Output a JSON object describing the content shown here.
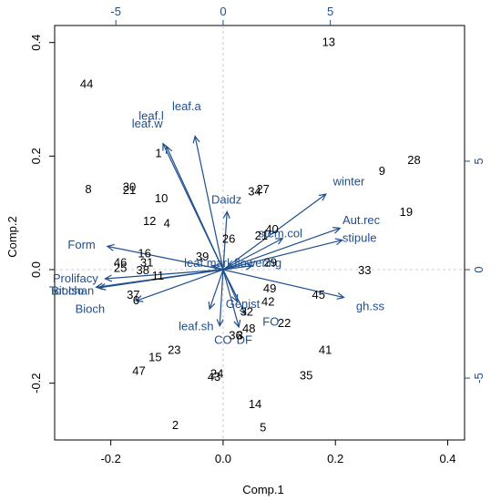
{
  "chart_data": {
    "type": "scatter",
    "subtype": "biplot",
    "xlabel": "Comp.1",
    "ylabel": "Comp.2",
    "xlim": [
      -0.3,
      0.43
    ],
    "ylim": [
      -0.3,
      0.43
    ],
    "xticks": [
      "-0.2",
      "0.0",
      "0.2",
      "0.4"
    ],
    "xtick_values": [
      -0.2,
      0.0,
      0.2,
      0.4
    ],
    "yticks": [
      "-0.2",
      "0.0",
      "0.2",
      "0.4"
    ],
    "ytick_values": [
      -0.2,
      0.0,
      0.2,
      0.4
    ],
    "top_ticks": [
      "-5",
      "0",
      "5"
    ],
    "top_tick_values": [
      -5,
      0,
      5
    ],
    "right_ticks": [
      "-5",
      "0",
      "5"
    ],
    "right_tick_values": [
      -5,
      0,
      5
    ],
    "secondary_scale": 0.0382,
    "colors": {
      "observations": "#000000",
      "variables": "#1f4e8c"
    },
    "observations": [
      {
        "label": "13",
        "x": 0.188,
        "y": 0.402
      },
      {
        "label": "44",
        "x": -0.243,
        "y": 0.328
      },
      {
        "label": "9",
        "x": 0.283,
        "y": 0.175
      },
      {
        "label": "28",
        "x": 0.34,
        "y": 0.194
      },
      {
        "label": "1",
        "x": -0.115,
        "y": 0.206
      },
      {
        "label": "8",
        "x": -0.24,
        "y": 0.143
      },
      {
        "label": "30",
        "x": -0.167,
        "y": 0.147
      },
      {
        "label": "21",
        "x": -0.167,
        "y": 0.141
      },
      {
        "label": "10",
        "x": -0.11,
        "y": 0.127
      },
      {
        "label": "34",
        "x": 0.056,
        "y": 0.139
      },
      {
        "label": "27",
        "x": 0.071,
        "y": 0.143
      },
      {
        "label": "19",
        "x": 0.326,
        "y": 0.103
      },
      {
        "label": "12",
        "x": -0.131,
        "y": 0.087
      },
      {
        "label": "4",
        "x": -0.1,
        "y": 0.083
      },
      {
        "label": "26",
        "x": 0.01,
        "y": 0.055
      },
      {
        "label": "21",
        "x": 0.068,
        "y": 0.061
      },
      {
        "label": "40",
        "x": 0.087,
        "y": 0.072
      },
      {
        "label": "16",
        "x": -0.14,
        "y": 0.03
      },
      {
        "label": "39",
        "x": -0.037,
        "y": 0.024
      },
      {
        "label": "46",
        "x": -0.183,
        "y": 0.014
      },
      {
        "label": "31",
        "x": -0.136,
        "y": 0.014
      },
      {
        "label": "25",
        "x": -0.183,
        "y": 0.004
      },
      {
        "label": "38",
        "x": -0.143,
        "y": 0.0
      },
      {
        "label": "11",
        "x": -0.116,
        "y": -0.01
      },
      {
        "label": "29",
        "x": 0.084,
        "y": 0.014
      },
      {
        "label": "33",
        "x": 0.252,
        "y": 0.0
      },
      {
        "label": "37",
        "x": -0.16,
        "y": -0.043
      },
      {
        "label": "6",
        "x": -0.155,
        "y": -0.053
      },
      {
        "label": "49",
        "x": 0.083,
        "y": -0.032
      },
      {
        "label": "42",
        "x": 0.08,
        "y": -0.055
      },
      {
        "label": "45",
        "x": 0.17,
        "y": -0.043
      },
      {
        "label": "32",
        "x": 0.042,
        "y": -0.073
      },
      {
        "label": "22",
        "x": 0.109,
        "y": -0.093
      },
      {
        "label": "48",
        "x": 0.046,
        "y": -0.103
      },
      {
        "label": "3",
        "x": 0.03,
        "y": -0.115
      },
      {
        "label": "36",
        "x": 0.022,
        "y": -0.115
      },
      {
        "label": "41",
        "x": 0.182,
        "y": -0.14
      },
      {
        "label": "23",
        "x": -0.087,
        "y": -0.14
      },
      {
        "label": "15",
        "x": -0.121,
        "y": -0.153
      },
      {
        "label": "47",
        "x": -0.15,
        "y": -0.177
      },
      {
        "label": "24",
        "x": -0.011,
        "y": -0.182
      },
      {
        "label": "43",
        "x": -0.016,
        "y": -0.188
      },
      {
        "label": "35",
        "x": 0.148,
        "y": -0.185
      },
      {
        "label": "14",
        "x": 0.057,
        "y": -0.236
      },
      {
        "label": "2",
        "x": -0.085,
        "y": -0.273
      },
      {
        "label": "5",
        "x": 0.071,
        "y": -0.277
      }
    ],
    "variables": [
      {
        "label": "leaf.a",
        "x": -0.05,
        "y": 0.235,
        "lx": -0.065,
        "ly": 0.287
      },
      {
        "label": "leaf.l",
        "x": -0.107,
        "y": 0.222,
        "lx": -0.128,
        "ly": 0.27
      },
      {
        "label": "leaf.w",
        "x": -0.101,
        "y": 0.217,
        "lx": -0.135,
        "ly": 0.257
      },
      {
        "label": "winter",
        "x": 0.183,
        "y": 0.133,
        "lx": 0.224,
        "ly": 0.155
      },
      {
        "label": "Daidz",
        "x": 0.007,
        "y": 0.102,
        "lx": 0.006,
        "ly": 0.123
      },
      {
        "label": "Aut.rec",
        "x": 0.208,
        "y": 0.073,
        "lx": 0.246,
        "ly": 0.087
      },
      {
        "label": "stem.col",
        "x": 0.106,
        "y": 0.055,
        "lx": 0.102,
        "ly": 0.063
      },
      {
        "label": "stipule",
        "x": 0.212,
        "y": 0.052,
        "lx": 0.243,
        "ly": 0.055
      },
      {
        "label": "Form",
        "x": -0.206,
        "y": 0.041,
        "lx": -0.252,
        "ly": 0.043
      },
      {
        "label": "leaf.mark",
        "x": -0.019,
        "y": 0.007,
        "lx": -0.026,
        "ly": 0.011
      },
      {
        "label": "flowering",
        "x": 0.052,
        "y": 0.007,
        "lx": 0.062,
        "ly": 0.011
      },
      {
        "label": "Prolifacy",
        "x": -0.21,
        "y": -0.016,
        "lx": -0.263,
        "ly": -0.016
      },
      {
        "label": "Tot.Iso",
        "x": -0.226,
        "y": -0.031,
        "lx": -0.279,
        "ly": -0.038
      },
      {
        "label": "Biochan",
        "x": -0.221,
        "y": -0.032,
        "lx": -0.268,
        "ly": -0.038
      },
      {
        "label": "Bioch",
        "x": -0.155,
        "y": -0.055,
        "lx": -0.237,
        "ly": -0.07
      },
      {
        "label": "gh.ss",
        "x": 0.215,
        "y": -0.049,
        "lx": 0.262,
        "ly": -0.065
      },
      {
        "label": "Genist",
        "x": 0.025,
        "y": -0.056,
        "lx": 0.035,
        "ly": -0.061
      },
      {
        "label": "leaf.sh",
        "x": -0.024,
        "y": -0.069,
        "lx": -0.048,
        "ly": -0.1
      },
      {
        "label": "FO",
        "x": 0.04,
        "y": -0.079,
        "lx": 0.085,
        "ly": -0.092
      },
      {
        "label": "CO",
        "x": -0.006,
        "y": -0.099,
        "lx": 0.0,
        "ly": -0.124
      },
      {
        "label": "DF",
        "x": 0.028,
        "y": -0.101,
        "lx": 0.038,
        "ly": -0.124
      }
    ]
  }
}
